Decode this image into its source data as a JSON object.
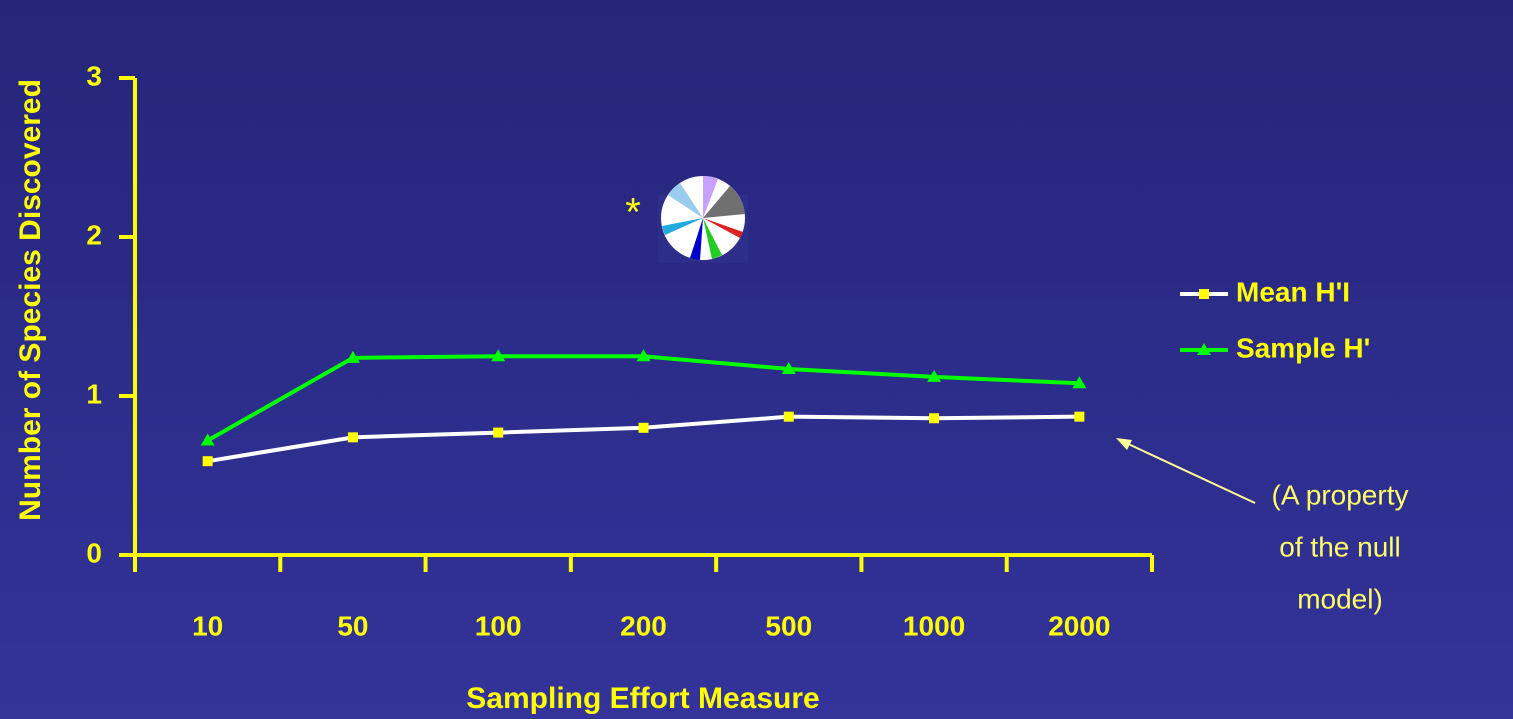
{
  "chart_data": {
    "type": "line",
    "y_label": "Number of Species Discovered",
    "x_label": "Sampling Effort Measure",
    "categories": [
      "10",
      "50",
      "100",
      "200",
      "500",
      "1000",
      "2000"
    ],
    "series": [
      {
        "name": "Mean H'I",
        "color": "#ffffff",
        "marker": "square",
        "marker_color": "#ffff00",
        "values": [
          0.59,
          0.74,
          0.77,
          0.8,
          0.87,
          0.86,
          0.87
        ]
      },
      {
        "name": "Sample H'",
        "color": "#00ff00",
        "marker": "triangle",
        "marker_color": "#00ff00",
        "values": [
          0.72,
          1.24,
          1.25,
          1.25,
          1.17,
          1.12,
          1.08
        ]
      }
    ],
    "ylim": [
      0,
      3
    ],
    "yticks": [
      0,
      1,
      2,
      3
    ],
    "axis_color": "#ffff00",
    "legend": "right",
    "marker_note": "*",
    "annotation": [
      "(A property",
      "of the null",
      "model)"
    ]
  }
}
